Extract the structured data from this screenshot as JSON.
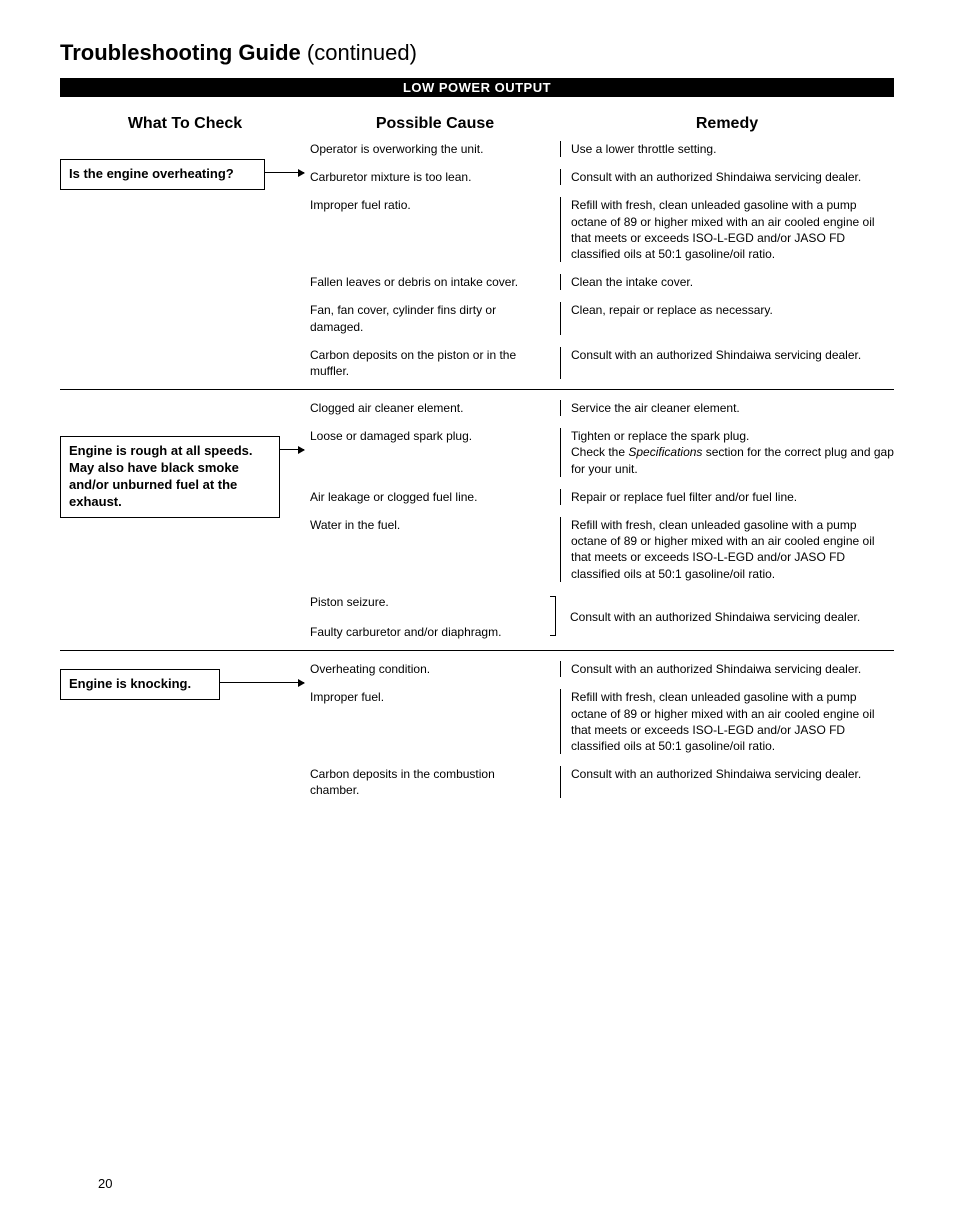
{
  "page": {
    "title_bold": "Troubleshooting Guide",
    "title_cont": "(continued)",
    "section_header": "LOW POWER OUTPUT",
    "col_headers": {
      "check": "What To Check",
      "cause": "Possible Cause",
      "remedy": "Remedy"
    },
    "page_number": "20"
  },
  "groups": [
    {
      "check": "Is the engine overheating?",
      "rows": [
        {
          "cause": "Operator is overworking the unit.",
          "remedy": "Use a lower throttle setting."
        },
        {
          "cause": "Carburetor mixture is too lean.",
          "remedy": "Consult with an authorized Shindaiwa servicing dealer."
        },
        {
          "cause": "Improper fuel ratio.",
          "remedy": "Refill with fresh, clean unleaded gasoline with a pump octane of 89 or higher mixed with an air cooled engine oil that meets or exceeds ISO-L-EGD and/or JASO FD classified oils at 50:1 gasoline/oil ratio."
        },
        {
          "cause": "Fallen leaves or debris on intake cover.",
          "remedy": "Clean the intake cover."
        },
        {
          "cause": "Fan, fan cover, cylinder fins dirty or damaged.",
          "remedy": "Clean, repair or replace as necessary."
        },
        {
          "cause": "Carbon deposits on the piston or in the muffler.",
          "remedy": "Consult with an authorized Shindaiwa servicing dealer."
        }
      ]
    },
    {
      "check": "Engine is rough at all speeds. May also have black smoke and/or unburned fuel at the exhaust.",
      "rows": [
        {
          "cause": "Clogged air cleaner element.",
          "remedy": "Service the air cleaner element."
        },
        {
          "cause": "Loose or damaged spark plug.",
          "remedy_html": "Tighten or replace the spark plug.<br>Check the <span class=\"italic\">Specifications</span> section for the correct plug and gap for your unit."
        },
        {
          "cause": "Air leakage or clogged fuel line.",
          "remedy": "Repair or replace fuel filter and/or fuel line."
        },
        {
          "cause": "Water in the fuel.",
          "remedy": "Refill with fresh, clean unleaded gasoline with a pump octane of 89 or higher mixed with an air cooled engine oil that meets or exceeds ISO-L-EGD and/or JASO FD classified oils at 50:1 gasoline/oil ratio."
        },
        {
          "cause": "Piston seizure.",
          "remedy": "",
          "bracket_start": true
        },
        {
          "cause": "Faulty carburetor and/or diaphragm.",
          "remedy": "Consult with an authorized Shindaiwa servicing dealer.",
          "bracket_end": true,
          "shared_remedy": true
        }
      ]
    },
    {
      "check": "Engine is knocking.",
      "rows": [
        {
          "cause": "Overheating condition.",
          "remedy": "Consult with an authorized Shindaiwa servicing dealer."
        },
        {
          "cause": "Improper fuel.",
          "remedy": "Refill with fresh, clean unleaded gasoline with a pump octane of 89 or higher mixed with an air cooled engine oil that meets or exceeds ISO-L-EGD and/or JASO FD classified oils at 50:1 gasoline/oil ratio."
        },
        {
          "cause": "Carbon deposits in the combustion chamber.",
          "remedy": "Consult with an authorized Shindaiwa servicing dealer."
        }
      ]
    }
  ]
}
